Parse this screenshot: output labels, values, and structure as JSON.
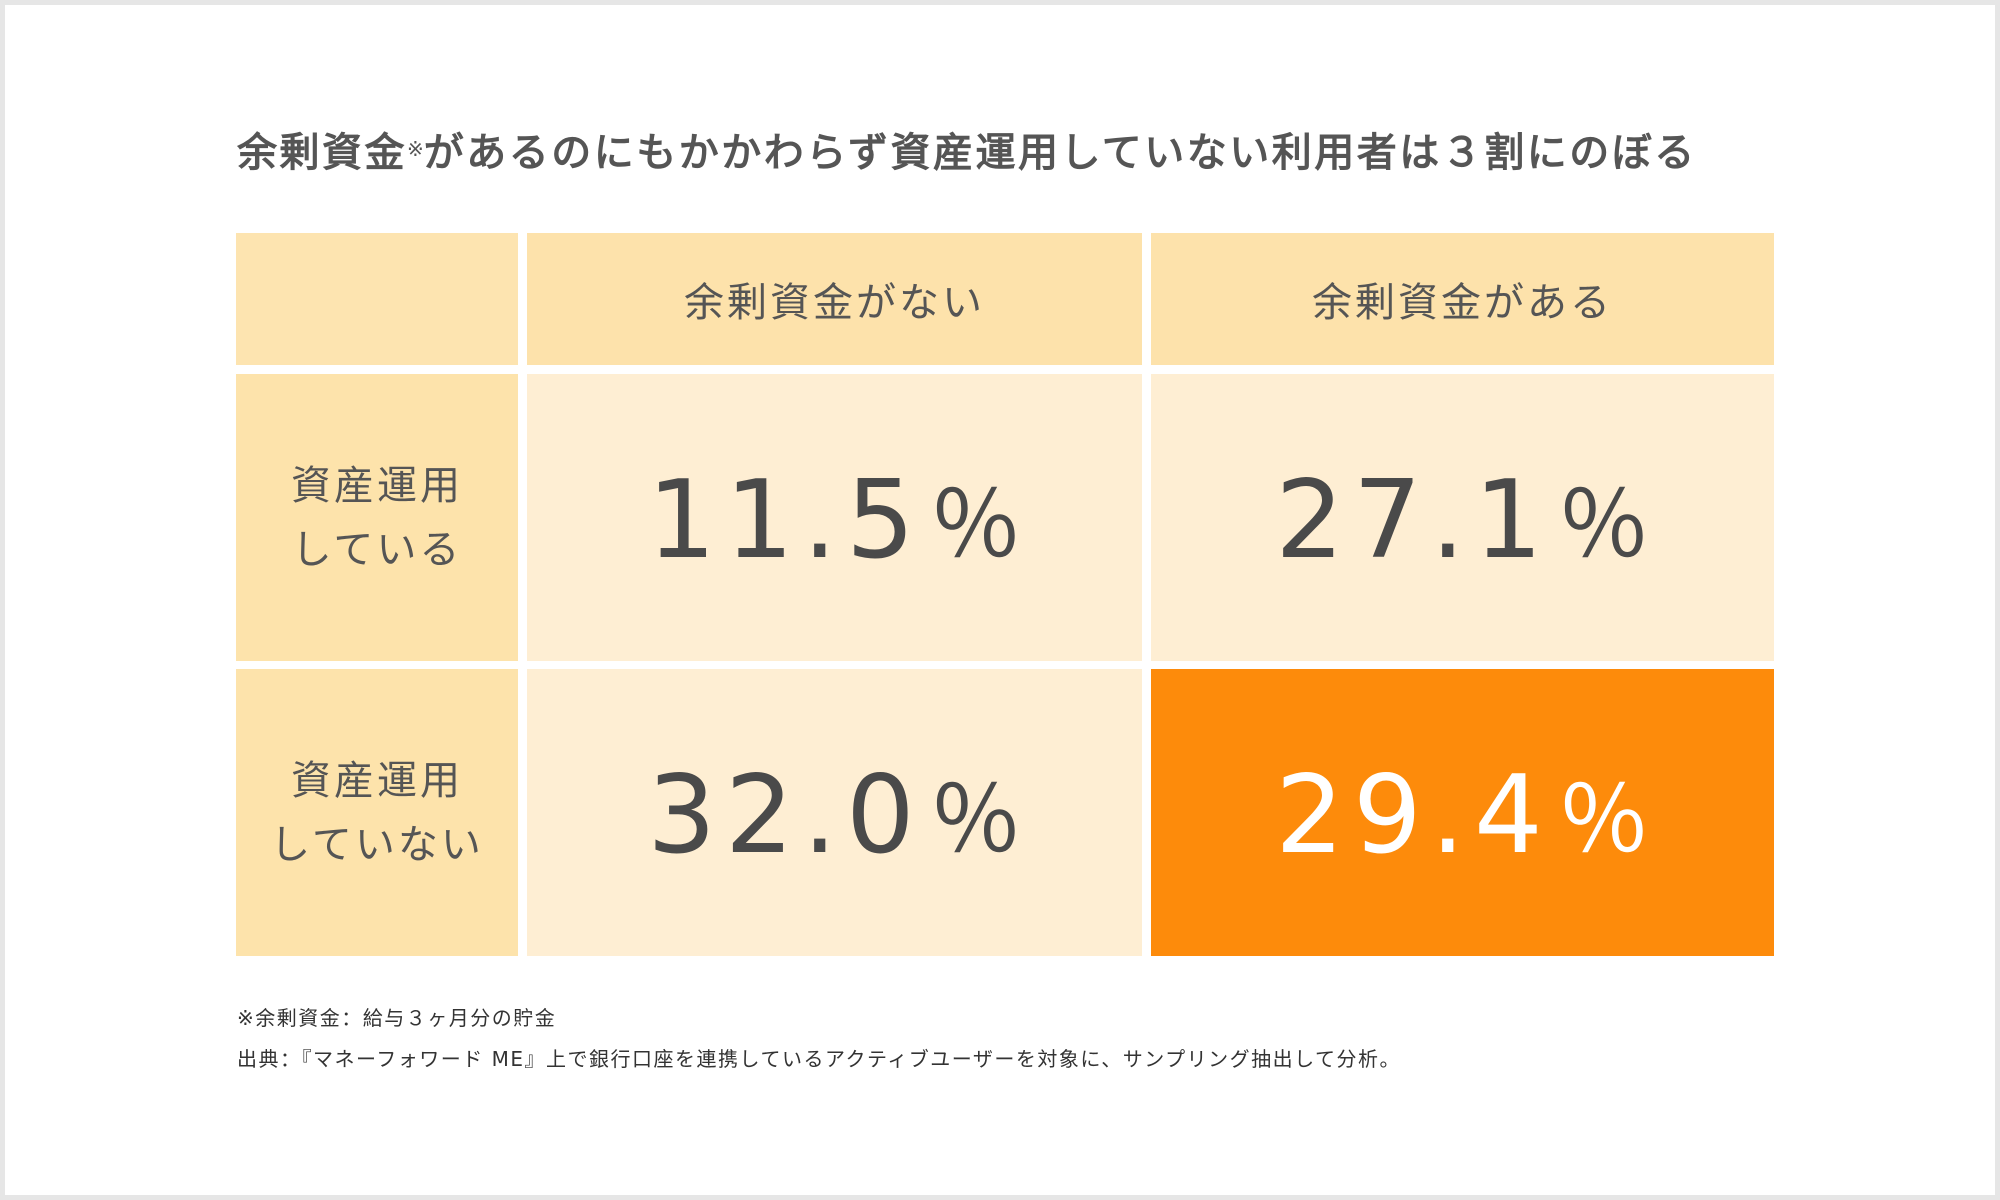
{
  "title": {
    "main": "余剰資金",
    "mark": "※",
    "rest": "があるのにもかかわらず資産運用していない利用者は３割にのぼる"
  },
  "chart_data": {
    "type": "table",
    "columns": [
      "余剰資金がない",
      "余剰資金がある"
    ],
    "rows": [
      {
        "label_line1": "資産運用",
        "label_line2": "している",
        "values": [
          "11.5％",
          "27.1％"
        ]
      },
      {
        "label_line1": "資産運用",
        "label_line2": "していない",
        "values": [
          "32.0％",
          "29.4％"
        ]
      }
    ],
    "numeric_values": [
      [
        11.5,
        27.1
      ],
      [
        32.0,
        29.4
      ]
    ],
    "unit": "％",
    "highlight_cell": [
      1,
      1
    ]
  },
  "colors": {
    "header_bg": "#fde2ab",
    "value_bg": "#feeed3",
    "highlight_bg": "#fd8b0b",
    "text": "#4a4a4a",
    "highlight_text": "#ffffff"
  },
  "notes": [
    "※余剰資金：給与３ヶ月分の貯金",
    "出典：『マネーフォワード ME』上で銀行口座を連携しているアクティブユーザーを対象に、サンプリング抽出して分析。"
  ]
}
